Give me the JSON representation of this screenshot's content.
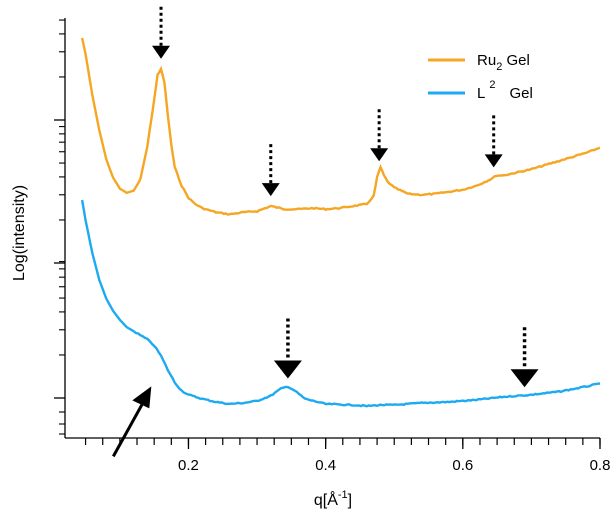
{
  "chart_data": {
    "type": "line",
    "xlabel": "q[Å⁻¹]",
    "xlabel_parts": {
      "base": "q[Å",
      "sup": "-1",
      "tail": "]"
    },
    "ylabel": "Log(intensity)",
    "xlim": [
      0.02,
      0.8
    ],
    "x_ticks": [
      "0.2",
      "0.4",
      "0.6",
      "0.8"
    ],
    "y_ticks": [],
    "grid": false,
    "legend": {
      "position": "top-right",
      "entries": [
        {
          "label": "Ru₂ Gel",
          "base": "Ru",
          "sub": "2",
          "tail": " Gel",
          "color": "#F5A623"
        },
        {
          "label": "L² Gel",
          "base": "L",
          "sup": "2",
          "tail": "Gel",
          "color": "#1EAAF1"
        }
      ]
    },
    "series": [
      {
        "name": "Ru₂ Gel",
        "color": "#F5A623",
        "x": [
          0.045,
          0.05,
          0.06,
          0.07,
          0.08,
          0.09,
          0.1,
          0.11,
          0.12,
          0.13,
          0.14,
          0.15,
          0.155,
          0.16,
          0.165,
          0.17,
          0.175,
          0.18,
          0.19,
          0.2,
          0.21,
          0.22,
          0.24,
          0.26,
          0.28,
          0.3,
          0.32,
          0.34,
          0.36,
          0.38,
          0.4,
          0.42,
          0.44,
          0.46,
          0.47,
          0.475,
          0.48,
          0.485,
          0.49,
          0.5,
          0.52,
          0.54,
          0.56,
          0.58,
          0.6,
          0.62,
          0.64,
          0.65,
          0.66,
          0.68,
          0.7,
          0.72,
          0.74,
          0.76,
          0.78,
          0.8
        ],
        "y": [
          100,
          92,
          72,
          55,
          41,
          32,
          26.5,
          24.5,
          25.5,
          31,
          47,
          70,
          82,
          85,
          78,
          62,
          48,
          37,
          28,
          22,
          19,
          17,
          15,
          14,
          15,
          15.5,
          18,
          16.5,
          16.5,
          17,
          16.5,
          17,
          18,
          19,
          23,
          32,
          37,
          33,
          30,
          27,
          24,
          23.5,
          24,
          25,
          26,
          28,
          31,
          33,
          33,
          34.5,
          36,
          38,
          40,
          42,
          44,
          46.5
        ]
      },
      {
        "name": "L² Gel",
        "color": "#1EAAF1",
        "x": [
          0.045,
          0.05,
          0.06,
          0.07,
          0.08,
          0.09,
          0.1,
          0.11,
          0.12,
          0.13,
          0.14,
          0.15,
          0.16,
          0.17,
          0.18,
          0.19,
          0.2,
          0.22,
          0.24,
          0.26,
          0.28,
          0.3,
          0.32,
          0.335,
          0.345,
          0.355,
          0.37,
          0.4,
          0.44,
          0.46,
          0.48,
          0.5,
          0.54,
          0.58,
          0.62,
          0.66,
          0.7,
          0.74,
          0.78,
          0.8
        ],
        "y": [
          100,
          90,
          74,
          61,
          52,
          46,
          41.5,
          38,
          36,
          34,
          32,
          29,
          24,
          17,
          11,
          7,
          5,
          3,
          1.5,
          0.5,
          1,
          2,
          4.5,
          8,
          9,
          7,
          3,
          0.5,
          0,
          -0.5,
          0,
          0,
          1,
          1.5,
          2.5,
          4,
          5,
          6.5,
          9,
          10.5
        ]
      }
    ],
    "arrows": [
      {
        "kind": "dotted-small",
        "series": "Ru₂ Gel",
        "x": 0.16
      },
      {
        "kind": "dotted-small",
        "series": "Ru₂ Gel",
        "x": 0.32
      },
      {
        "kind": "dotted-small",
        "series": "Ru₂ Gel",
        "x": 0.478
      },
      {
        "kind": "dotted-small",
        "series": "Ru₂ Gel",
        "x": 0.645
      },
      {
        "kind": "dotted-large",
        "series": "L² Gel",
        "x": 0.345
      },
      {
        "kind": "dotted-large",
        "series": "L² Gel",
        "x": 0.69
      },
      {
        "kind": "solid-diagonal",
        "series": "L² Gel",
        "x": 0.14
      }
    ]
  }
}
